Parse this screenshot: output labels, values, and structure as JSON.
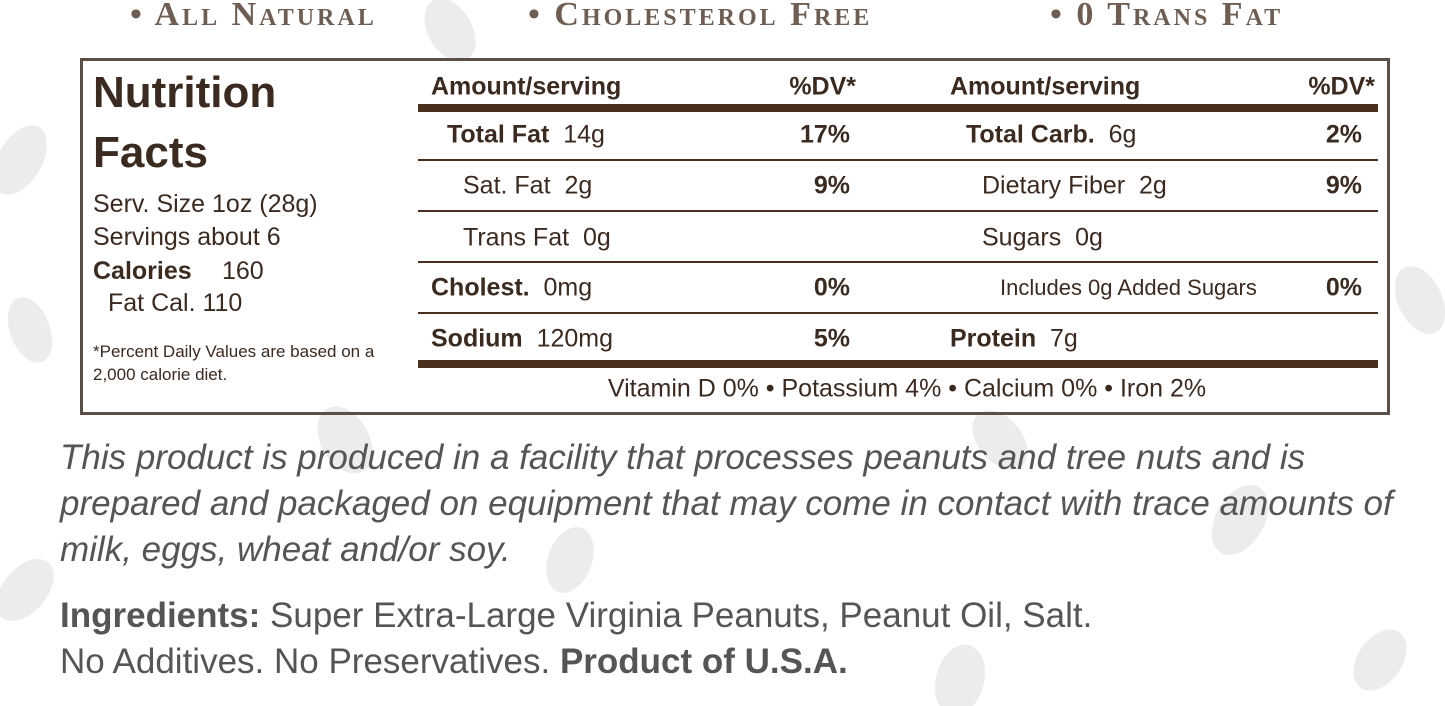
{
  "claims": [
    "• All Natural",
    "• Cholesterol Free",
    "• 0 Trans Fat"
  ],
  "nutrition": {
    "title_1": "Nutrition",
    "title_2": "Facts",
    "serving_size": "Serv. Size 1oz (28g)",
    "servings": "Servings about 6",
    "calories_label": "Calories",
    "calories_value": "160",
    "fat_calories": "Fat Cal. 110",
    "footnote": "*Percent Daily Values are based on a 2,000 calorie diet.",
    "header": {
      "amount": "Amount/serving",
      "dv": "%DV*"
    },
    "left": [
      {
        "label": "Total Fat",
        "amount": "14g",
        "dv": "17%"
      },
      {
        "label": "Sat. Fat",
        "amount": "2g",
        "dv": "9%"
      },
      {
        "label": "Trans Fat",
        "amount": "0g"
      },
      {
        "label": "Cholest.",
        "amount": "0mg",
        "dv": "0%"
      },
      {
        "label": "Sodium",
        "amount": "120mg",
        "dv": "5%"
      }
    ],
    "right": [
      {
        "label": "Total Carb.",
        "amount": "6g",
        "dv": "2%"
      },
      {
        "label": "Dietary Fiber",
        "amount": "2g",
        "dv": "9%"
      },
      {
        "label": "Sugars",
        "amount": "0g"
      },
      {
        "label": "Includes 0g Added Sugars",
        "dv": "0%"
      },
      {
        "label": "Protein",
        "amount": "7g"
      }
    ],
    "vitamins": "Vitamin D 0% • Potassium 4% • Calcium 0% • Iron 2%"
  },
  "allergen": "This product is produced in a facility that processes peanuts and tree nuts and is prepared and packaged on equipment that may come in contact with trace amounts of milk, eggs, wheat and/or soy.",
  "ingredients": {
    "label": "Ingredients:",
    "text": "Super Extra-Large Virginia Peanuts, Peanut Oil, Salt.",
    "notes": "No Additives. No Preservatives.",
    "origin": "Product of U.S.A."
  }
}
